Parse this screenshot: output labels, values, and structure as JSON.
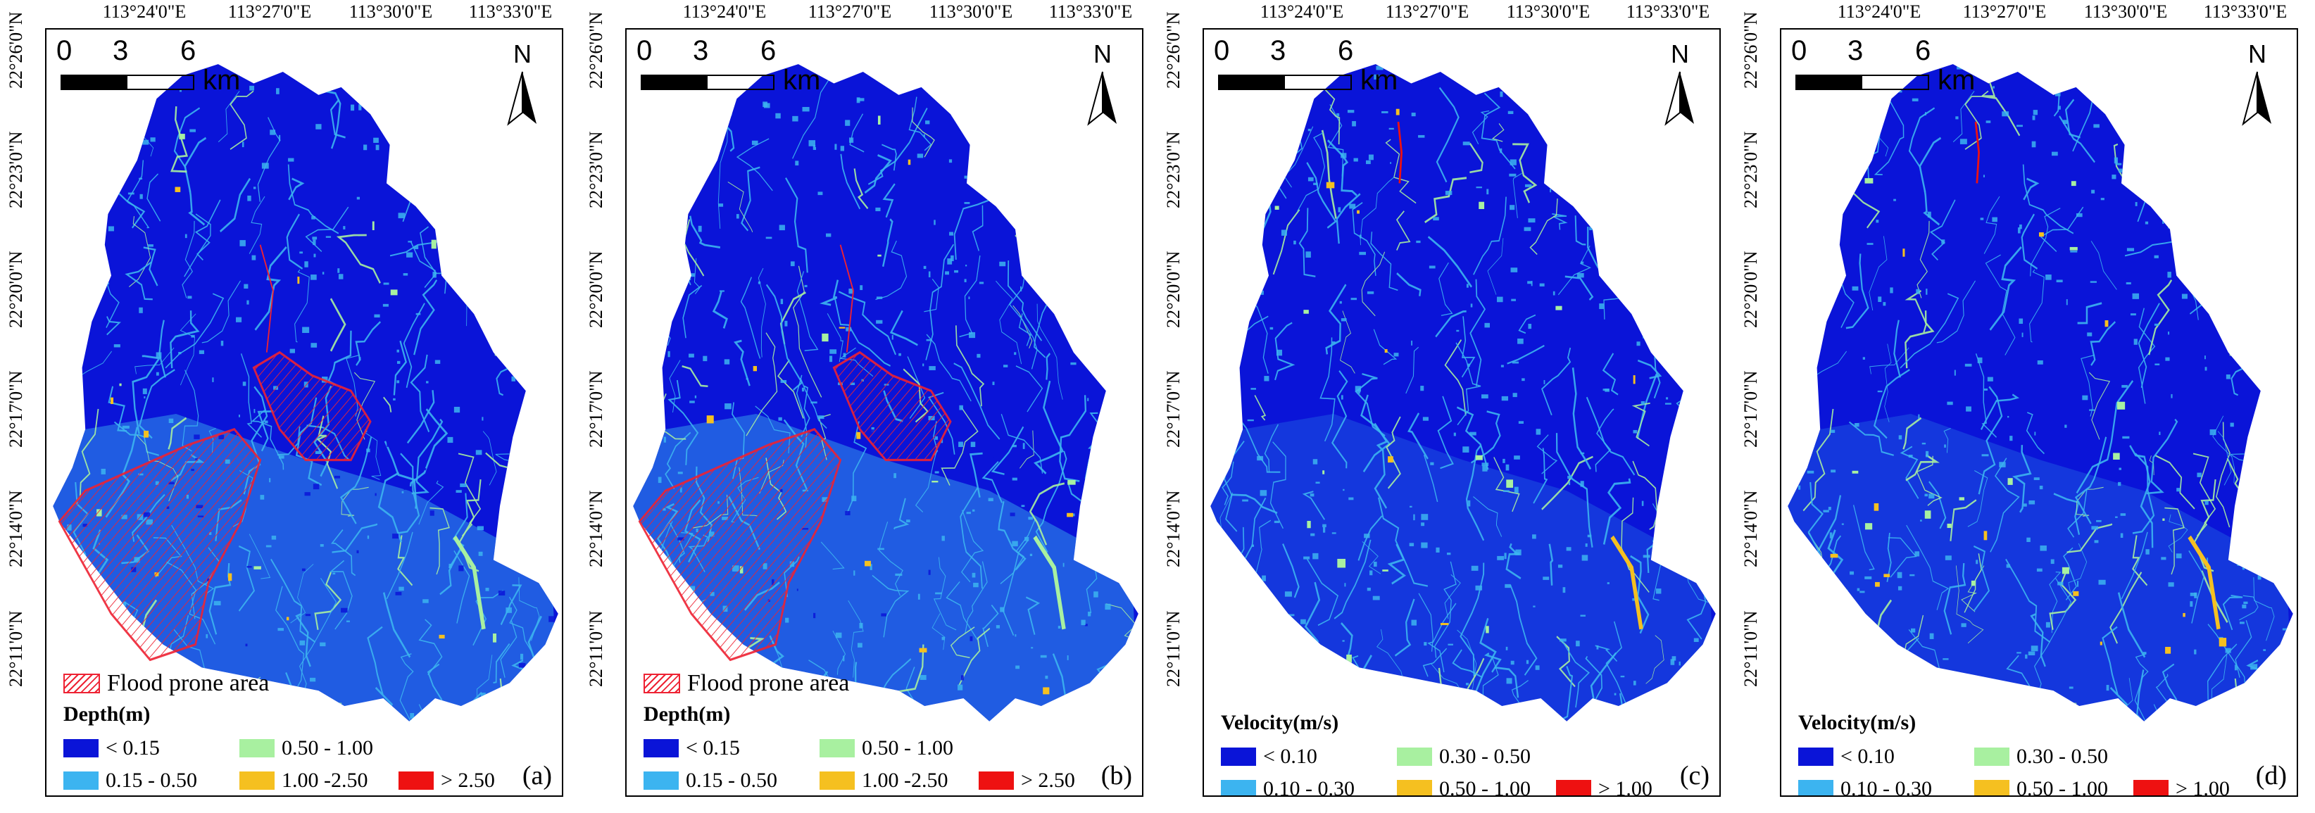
{
  "figure": {
    "panels": [
      {
        "id": "a",
        "tag": "(a)",
        "type": "depth",
        "x_ticks": [
          "113°24'0\"E",
          "113°27'0\"E",
          "113°30'0\"E",
          "113°33'0\"E"
        ],
        "y_ticks": [
          "22°26'0\"N",
          "22°23'0\"N",
          "22°20'0\"N",
          "22°17'0\"N",
          "22°14'0\"N",
          "22°11'0\"N"
        ],
        "scalebar": {
          "labels": [
            "0",
            "3",
            "6"
          ],
          "unit": "km"
        },
        "north": "N",
        "flood_prone_label": "Flood prone area",
        "legend_title": "Depth(m)",
        "legend": [
          {
            "label": "< 0.15",
            "color": "#0a14d8"
          },
          {
            "label": "0.50 - 1.00",
            "color": "#a8f0a0"
          },
          {
            "label": "0.15 - 0.50",
            "color": "#3cb4f0"
          },
          {
            "label": "1.00 -2.50",
            "color": "#f5c020"
          },
          {
            "label": "> 2.50",
            "color": "#ee1111"
          }
        ]
      },
      {
        "id": "b",
        "tag": "(b)",
        "type": "depth",
        "x_ticks": [
          "113°24'0\"E",
          "113°27'0\"E",
          "113°30'0\"E",
          "113°33'0\"E"
        ],
        "y_ticks": [
          "22°26'0\"N",
          "22°23'0\"N",
          "22°20'0\"N",
          "22°17'0\"N",
          "22°14'0\"N",
          "22°11'0\"N"
        ],
        "scalebar": {
          "labels": [
            "0",
            "3",
            "6"
          ],
          "unit": "km"
        },
        "north": "N",
        "flood_prone_label": "Flood prone area",
        "legend_title": "Depth(m)",
        "legend": [
          {
            "label": "< 0.15",
            "color": "#0a14d8"
          },
          {
            "label": "0.50 - 1.00",
            "color": "#a8f0a0"
          },
          {
            "label": "0.15 - 0.50",
            "color": "#3cb4f0"
          },
          {
            "label": "1.00 -2.50",
            "color": "#f5c020"
          },
          {
            "label": "> 2.50",
            "color": "#ee1111"
          }
        ]
      },
      {
        "id": "c",
        "tag": "(c)",
        "type": "velocity",
        "x_ticks": [
          "113°24'0\"E",
          "113°27'0\"E",
          "113°30'0\"E",
          "113°33'0\"E"
        ],
        "y_ticks": [
          "22°26'0\"N",
          "22°23'0\"N",
          "22°20'0\"N",
          "22°17'0\"N",
          "22°14'0\"N",
          "22°11'0\"N"
        ],
        "scalebar": {
          "labels": [
            "0",
            "3",
            "6"
          ],
          "unit": "km"
        },
        "north": "N",
        "flood_prone_label": "",
        "legend_title": "Velocity(m/s)",
        "legend": [
          {
            "label": "< 0.10",
            "color": "#0a14d8"
          },
          {
            "label": "0.30 - 0.50",
            "color": "#a8f0a0"
          },
          {
            "label": "0.10 - 0.30",
            "color": "#3cb4f0"
          },
          {
            "label": "0.50 - 1.00",
            "color": "#f5c020"
          },
          {
            "label": "> 1.00",
            "color": "#ee1111"
          }
        ]
      },
      {
        "id": "d",
        "tag": "(d)",
        "type": "velocity",
        "x_ticks": [
          "113°24'0\"E",
          "113°27'0\"E",
          "113°30'0\"E",
          "113°33'0\"E"
        ],
        "y_ticks": [
          "22°26'0\"N",
          "22°23'0\"N",
          "22°20'0\"N",
          "22°17'0\"N",
          "22°14'0\"N",
          "22°11'0\"N"
        ],
        "scalebar": {
          "labels": [
            "0",
            "3",
            "6"
          ],
          "unit": "km"
        },
        "north": "N",
        "flood_prone_label": "",
        "legend_title": "Velocity(m/s)",
        "legend": [
          {
            "label": "< 0.10",
            "color": "#0a14d8"
          },
          {
            "label": "0.30 - 0.50",
            "color": "#a8f0a0"
          },
          {
            "label": "0.10 - 0.30",
            "color": "#3cb4f0"
          },
          {
            "label": "0.50 - 1.00",
            "color": "#f5c020"
          },
          {
            "label": "> 1.00",
            "color": "#ee1111"
          }
        ]
      }
    ]
  }
}
